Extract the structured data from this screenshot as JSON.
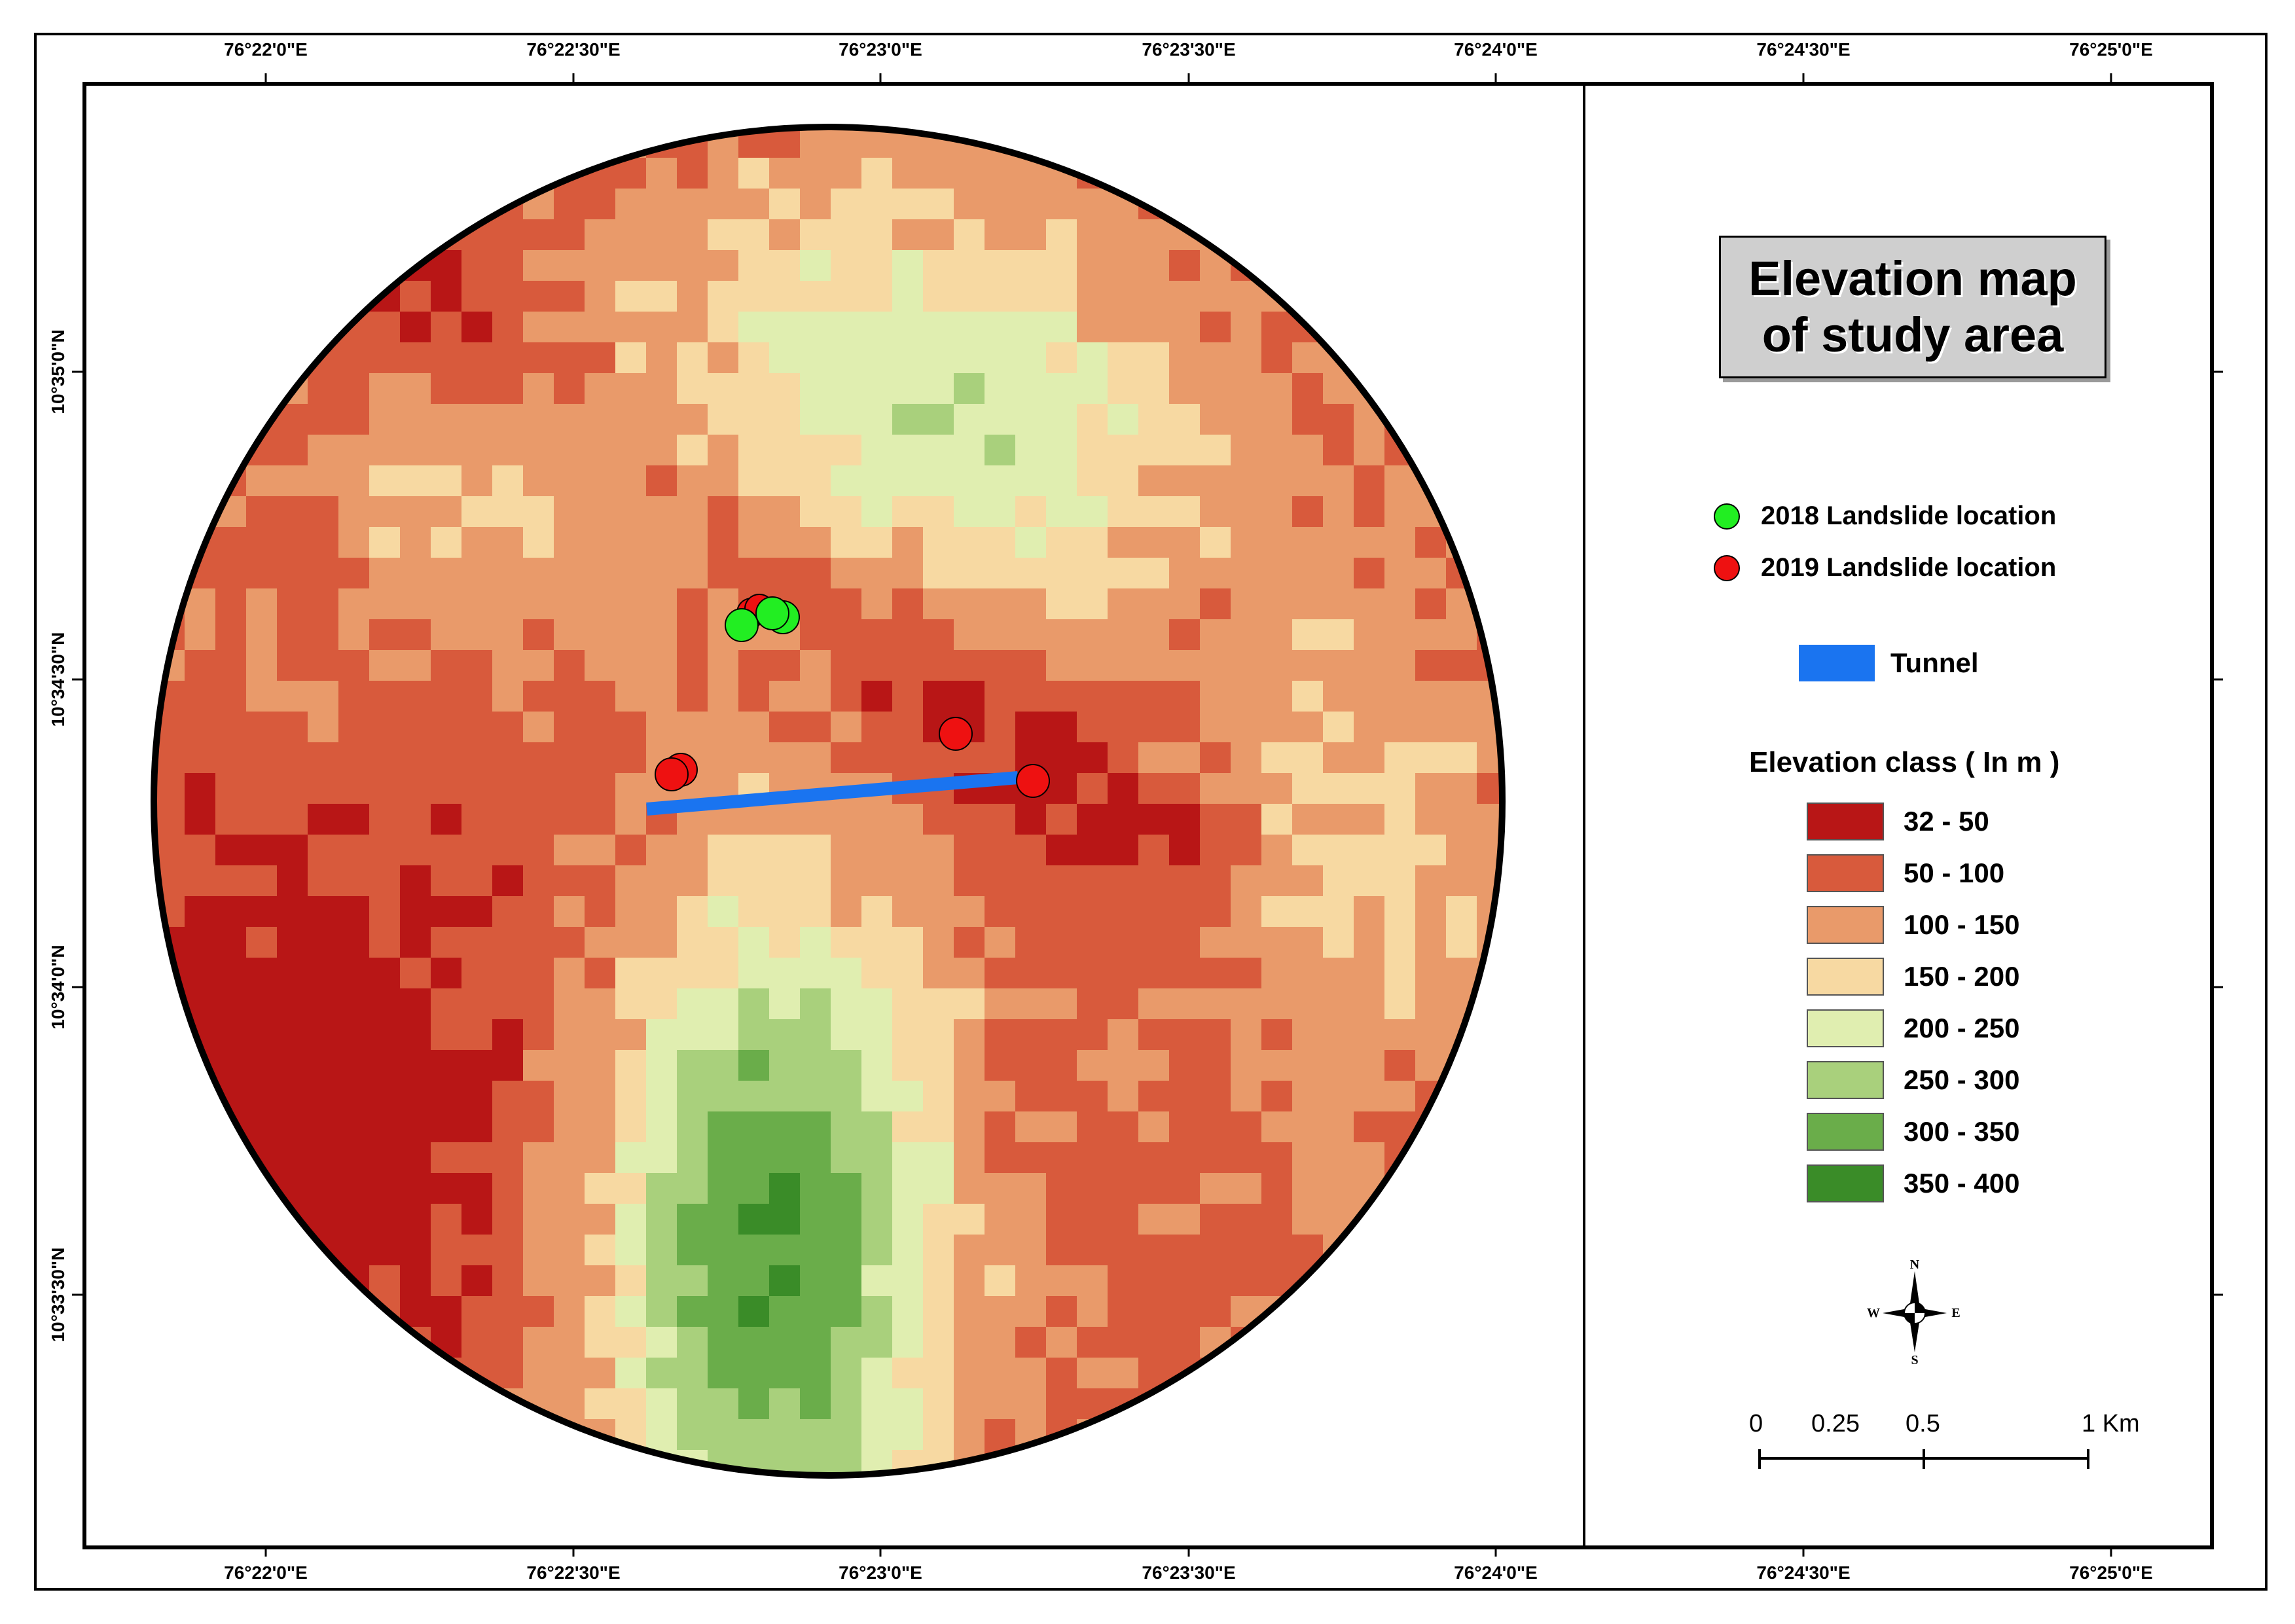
{
  "map": {
    "title_line1": "Elevation  map",
    "title_line2": "of study area",
    "graticule": {
      "lon_labels": [
        "76°22'0\"E",
        "76°22'30\"E",
        "76°23'0\"E",
        "76°23'30\"E",
        "76°24'0\"E",
        "76°24'30\"E",
        "76°25'0\"E"
      ],
      "lat_labels": [
        "10°35'0\"N",
        "10°34'30\"N",
        "10°34'0\"N",
        "10°33'30\"N"
      ]
    },
    "legend": {
      "landslide_2018": {
        "label": "2018 Landslide location",
        "color": "#22ee22"
      },
      "landslide_2019": {
        "label": "2019 Landslide location",
        "color": "#ee1111"
      },
      "tunnel": {
        "label": "Tunnel",
        "color": "#1a74f0"
      }
    },
    "elevation_heading": "Elevation class ( In m )",
    "elevation_classes": [
      {
        "label": "32 - 50",
        "color": "#b81616"
      },
      {
        "label": "50 - 100",
        "color": "#d85a3c"
      },
      {
        "label": "100 - 150",
        "color": "#e99a6a"
      },
      {
        "label": "150 - 200",
        "color": "#f7d9a2"
      },
      {
        "label": "200 - 250",
        "color": "#e0eeb0"
      },
      {
        "label": "250 - 300",
        "color": "#a9d07c"
      },
      {
        "label": "300 - 350",
        "color": "#6aad4a"
      },
      {
        "label": "350 - 400",
        "color": "#3a8c28"
      }
    ],
    "compass": {
      "n": "N",
      "s": "S",
      "e": "E",
      "w": "W",
      "icon": "compass-rose-icon"
    },
    "scale_bar": {
      "labels": [
        "0",
        "0.25",
        "0.5",
        "1 Km"
      ]
    }
  }
}
